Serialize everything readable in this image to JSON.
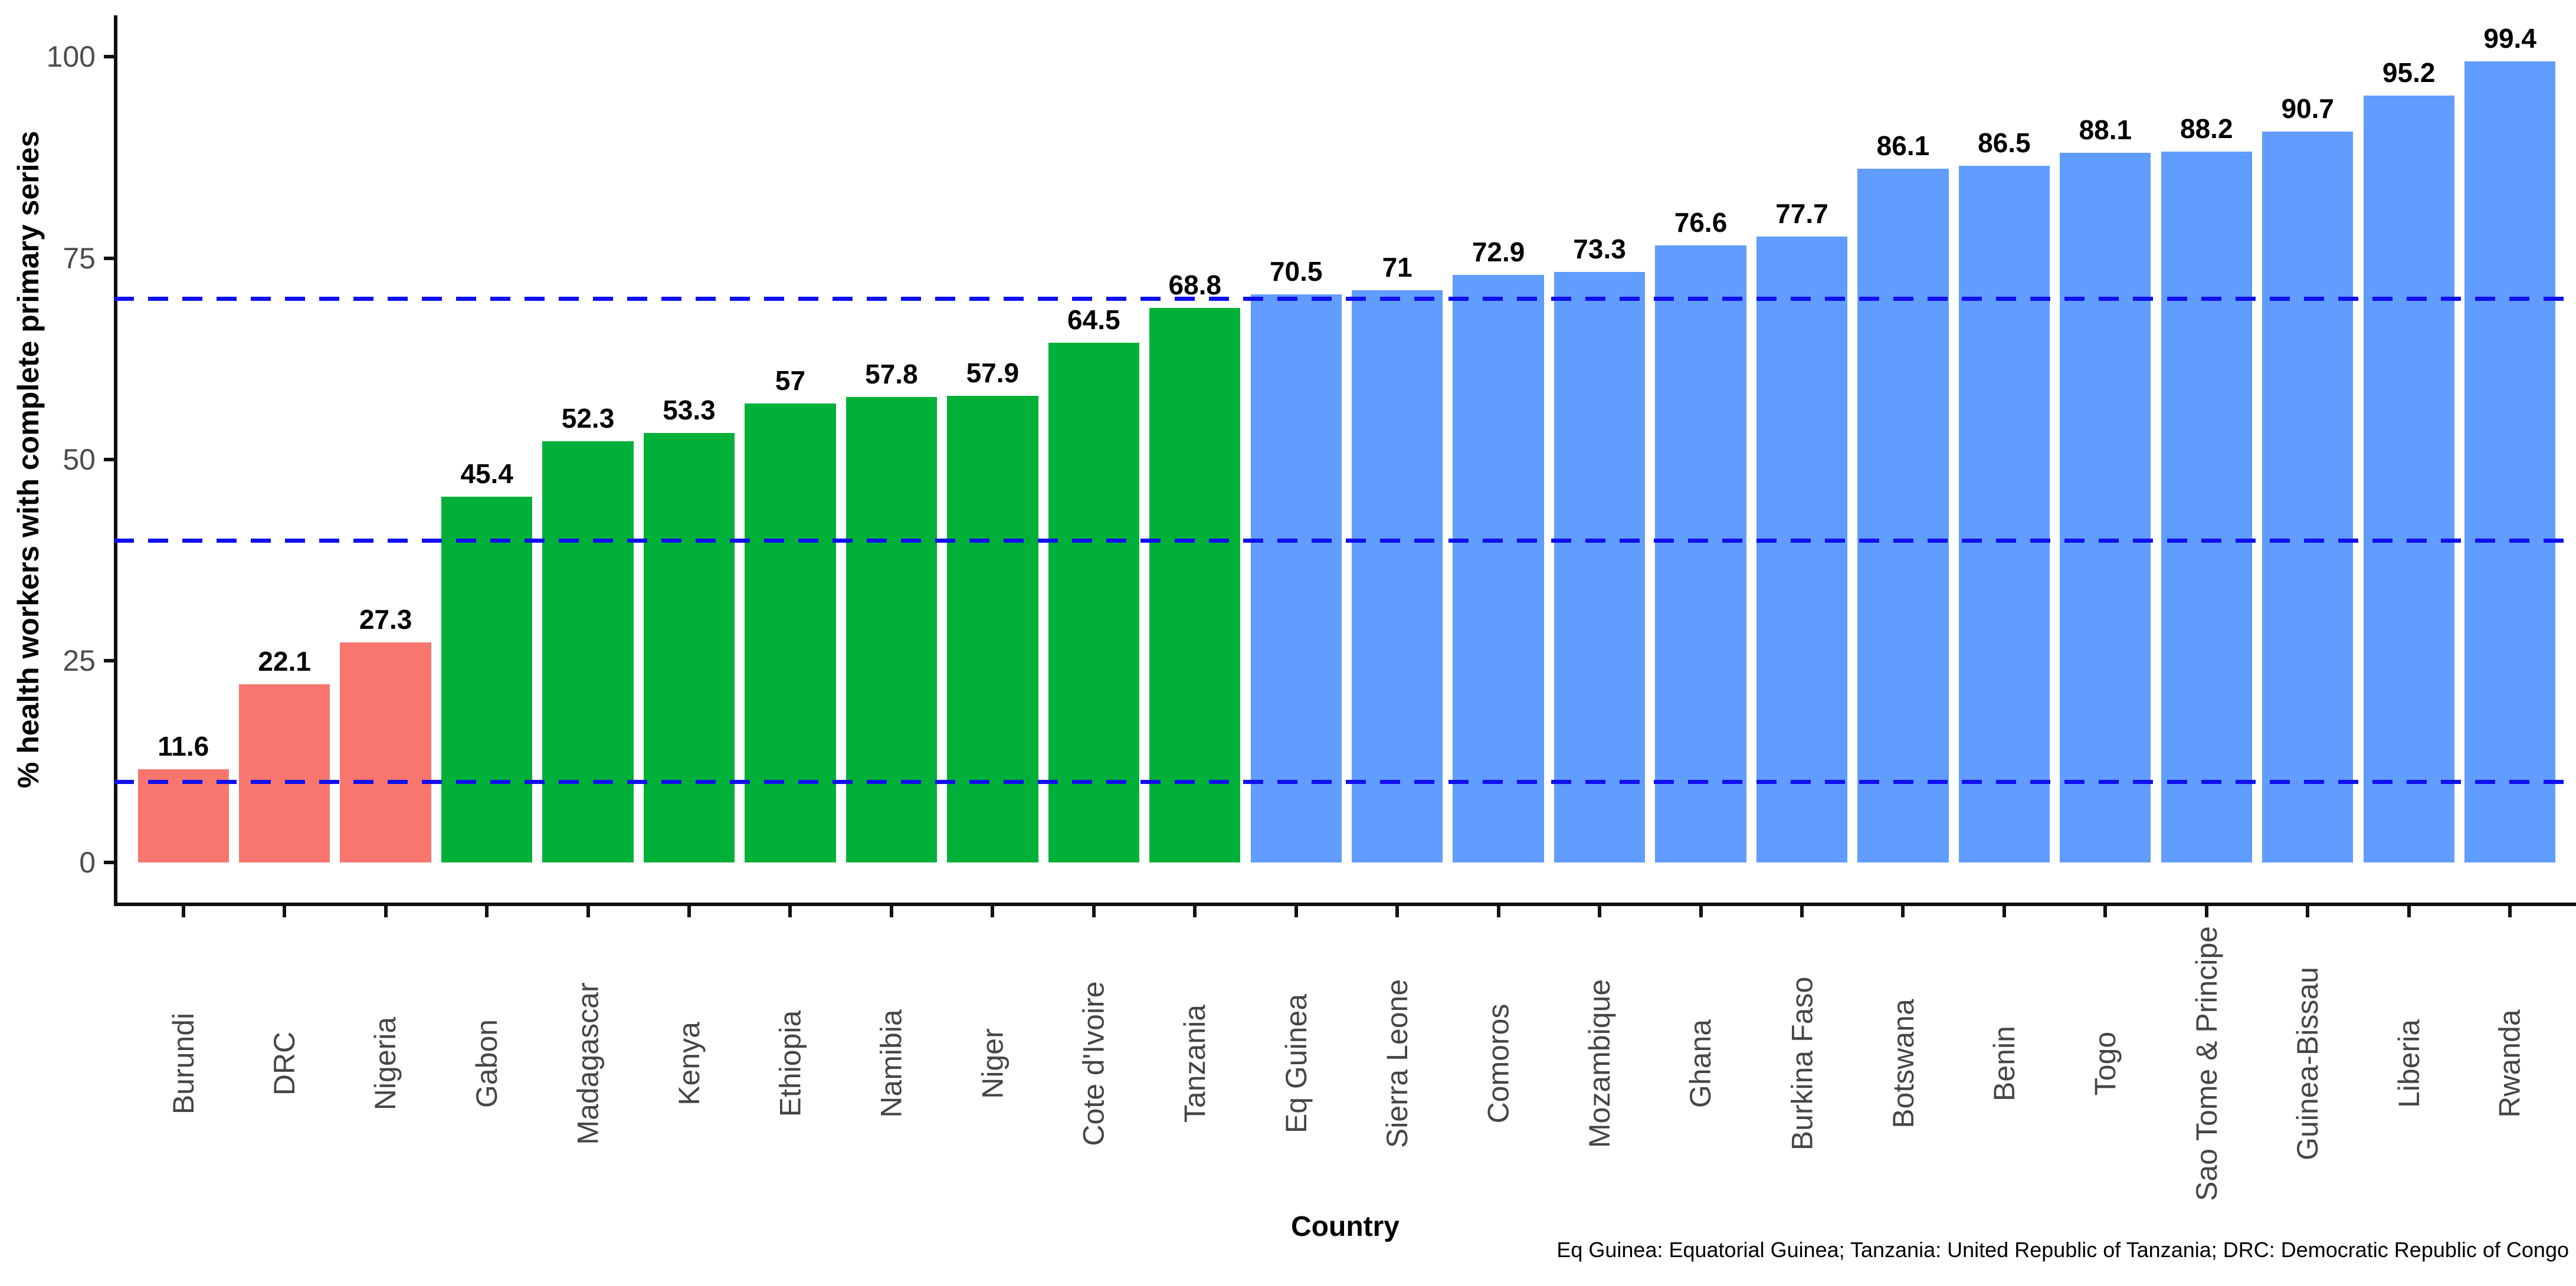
{
  "chart_data": {
    "type": "bar",
    "title": "",
    "xlabel": "Country",
    "ylabel": "% health workers with complete primary series",
    "ylim": [
      0,
      100
    ],
    "yticks": [
      0,
      25,
      50,
      75,
      100
    ],
    "grid": false,
    "legend": "none",
    "categories": [
      "Burundi",
      "DRC",
      "Nigeria",
      "Gabon",
      "Madagascar",
      "Kenya",
      "Ethiopia",
      "Namibia",
      "Niger",
      "Cote d'Ivoire",
      "Tanzania",
      "Eq Guinea",
      "Sierra Leone",
      "Comoros",
      "Mozambique",
      "Ghana",
      "Burkina Faso",
      "Botswana",
      "Benin",
      "Togo",
      "Sao Tome & Principe",
      "Guinea-Bissau",
      "Liberia",
      "Rwanda"
    ],
    "values": [
      11.6,
      22.1,
      27.3,
      45.4,
      52.3,
      53.3,
      57,
      57.8,
      57.9,
      64.5,
      68.8,
      70.5,
      71,
      72.9,
      73.3,
      76.6,
      77.7,
      86.1,
      86.5,
      88.1,
      88.2,
      90.7,
      95.2,
      99.4
    ],
    "value_labels": [
      "11.6",
      "22.1",
      "27.3",
      "45.4",
      "52.3",
      "53.3",
      "57",
      "57.8",
      "57.9",
      "64.5",
      "68.8",
      "70.5",
      "71",
      "72.9",
      "73.3",
      "76.6",
      "77.7",
      "86.1",
      "86.5",
      "88.1",
      "88.2",
      "90.7",
      "95.2",
      "99.4"
    ],
    "groups": [
      "low",
      "low",
      "low",
      "mid",
      "mid",
      "mid",
      "mid",
      "mid",
      "mid",
      "mid",
      "mid",
      "high",
      "high",
      "high",
      "high",
      "high",
      "high",
      "high",
      "high",
      "high",
      "high",
      "high",
      "high",
      "high"
    ],
    "group_colors": {
      "low": "#F8766D",
      "mid": "#00B038",
      "high": "#619CFF"
    },
    "reference_lines": [
      10,
      40,
      70
    ],
    "reference_line_color": "#1010EE",
    "reference_line_style": "dashed",
    "footnote": "Eq Guinea: Equatorial Guinea; Tanzania: United Republic of Tanzania; DRC: Democratic Republic of Congo"
  }
}
